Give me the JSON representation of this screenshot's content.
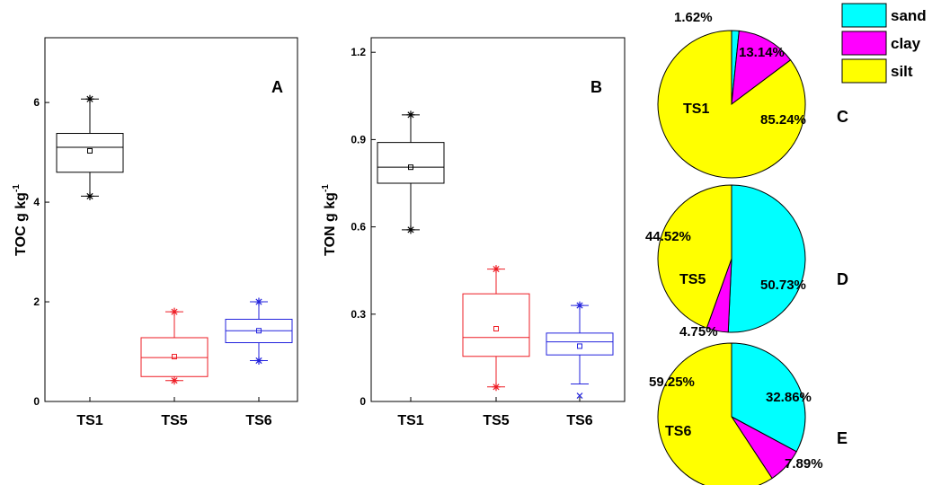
{
  "chart_data": [
    {
      "type": "box",
      "panel_label": "A",
      "ylabel": "TOC g kg",
      "ylabel_sup": "-1",
      "ylim": [
        0,
        7.3
      ],
      "yticks": [
        0,
        2,
        4,
        6
      ],
      "ytick_labels": [
        "0",
        "2",
        "4",
        "6"
      ],
      "categories": [
        "TS1",
        "TS5",
        "TS6"
      ],
      "boxes": [
        {
          "name": "TS1",
          "color": "#000000",
          "whisker_low": 4.12,
          "q1": 4.6,
          "median": 5.1,
          "q3": 5.38,
          "whisker_high": 6.07,
          "mean": 5.03,
          "outliers": [],
          "extremes": [
            4.12,
            6.07
          ]
        },
        {
          "name": "TS5",
          "color": "#ee1c24",
          "whisker_low": 0.42,
          "q1": 0.5,
          "median": 0.88,
          "q3": 1.28,
          "whisker_high": 1.8,
          "mean": 0.9,
          "outliers": [],
          "extremes": [
            0.42,
            1.8
          ]
        },
        {
          "name": "TS6",
          "color": "#2222dd",
          "whisker_low": 0.82,
          "q1": 1.18,
          "median": 1.42,
          "q3": 1.65,
          "whisker_high": 2.0,
          "mean": 1.42,
          "outliers": [],
          "extremes": [
            0.82,
            2.0
          ]
        }
      ]
    },
    {
      "type": "box",
      "panel_label": "B",
      "ylabel": "TON g kg",
      "ylabel_sup": "-1",
      "ylim": [
        0,
        1.25
      ],
      "yticks": [
        0,
        0.3,
        0.6,
        0.9,
        1.2
      ],
      "ytick_labels": [
        "0",
        "0.3",
        "0.6",
        "0.9",
        "1.2"
      ],
      "categories": [
        "TS1",
        "TS5",
        "TS6"
      ],
      "boxes": [
        {
          "name": "TS1",
          "color": "#000000",
          "whisker_low": 0.59,
          "q1": 0.75,
          "median": 0.805,
          "q3": 0.89,
          "whisker_high": 0.985,
          "mean": 0.805,
          "outliers": [],
          "extremes": [
            0.59,
            0.985
          ]
        },
        {
          "name": "TS5",
          "color": "#ee1c24",
          "whisker_low": 0.05,
          "q1": 0.155,
          "median": 0.22,
          "q3": 0.37,
          "whisker_high": 0.455,
          "mean": 0.25,
          "outliers": [],
          "extremes": [
            0.05,
            0.455
          ]
        },
        {
          "name": "TS6",
          "color": "#2222dd",
          "whisker_low": 0.06,
          "q1": 0.16,
          "median": 0.205,
          "q3": 0.235,
          "whisker_high": 0.33,
          "mean": 0.19,
          "outliers": [
            0.02
          ],
          "extremes": [
            0.33
          ]
        }
      ]
    },
    {
      "type": "pie",
      "panel_label": "C",
      "center_label": "TS1",
      "slices": [
        {
          "name": "sand",
          "value": 1.62,
          "label": "1.62%"
        },
        {
          "name": "clay",
          "value": 13.14,
          "label": "13.14%"
        },
        {
          "name": "silt",
          "value": 85.24,
          "label": "85.24%"
        }
      ]
    },
    {
      "type": "pie",
      "panel_label": "D",
      "center_label": "TS5",
      "slices": [
        {
          "name": "sand",
          "value": 50.73,
          "label": "50.73%"
        },
        {
          "name": "clay",
          "value": 4.75,
          "label": "4.75%"
        },
        {
          "name": "silt",
          "value": 44.52,
          "label": "44.52%"
        }
      ]
    },
    {
      "type": "pie",
      "panel_label": "E",
      "center_label": "TS6",
      "slices": [
        {
          "name": "sand",
          "value": 32.86,
          "label": "32.86%"
        },
        {
          "name": "clay",
          "value": 7.89,
          "label": "7.89%"
        },
        {
          "name": "silt",
          "value": 59.25,
          "label": "59.25%"
        }
      ]
    }
  ],
  "legend": {
    "placement": "top-right",
    "items": [
      {
        "name": "sand",
        "label": "sand",
        "color": "#00ffff"
      },
      {
        "name": "clay",
        "label": "clay",
        "color": "#ff00ff"
      },
      {
        "name": "silt",
        "label": "silt",
        "color": "#ffff00"
      }
    ]
  }
}
